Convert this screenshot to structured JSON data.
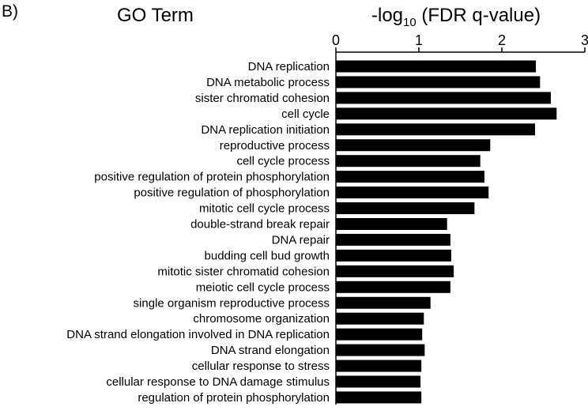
{
  "panel_label": "B)",
  "column_header_left": "GO Term",
  "column_header_right": {
    "prefix": "-log",
    "subscript": "10",
    "suffix": " (FDR q-value)"
  },
  "chart_data": {
    "type": "bar",
    "orientation": "horizontal",
    "xlim": [
      0,
      3
    ],
    "xticks": [
      "0",
      "1",
      "2",
      "3"
    ],
    "grid": false,
    "bar_color": "#000000",
    "categories": [
      "DNA replication",
      "DNA metabolic process",
      "sister chromatid cohesion",
      "cell cycle",
      "DNA replication initiation",
      "reproductive process",
      "cell cycle process",
      "positive regulation of protein phosphorylation",
      "positive regulation of phosphorylation",
      "mitotic cell cycle process",
      "double-strand break repair",
      "DNA repair",
      "budding cell bud growth",
      "mitotic sister chromatid cohesion",
      "meiotic cell cycle process",
      "single organism reproductive process",
      "chromosome organization",
      "DNA strand elongation involved in DNA replication",
      "DNA strand elongation",
      "cellular response to stress",
      "cellular response to DNA damage stimulus",
      "regulation of protein phosphorylation"
    ],
    "values": [
      2.41,
      2.46,
      2.59,
      2.66,
      2.4,
      1.86,
      1.74,
      1.79,
      1.84,
      1.67,
      1.34,
      1.38,
      1.39,
      1.42,
      1.38,
      1.14,
      1.06,
      1.04,
      1.07,
      1.03,
      1.02,
      1.03
    ]
  }
}
